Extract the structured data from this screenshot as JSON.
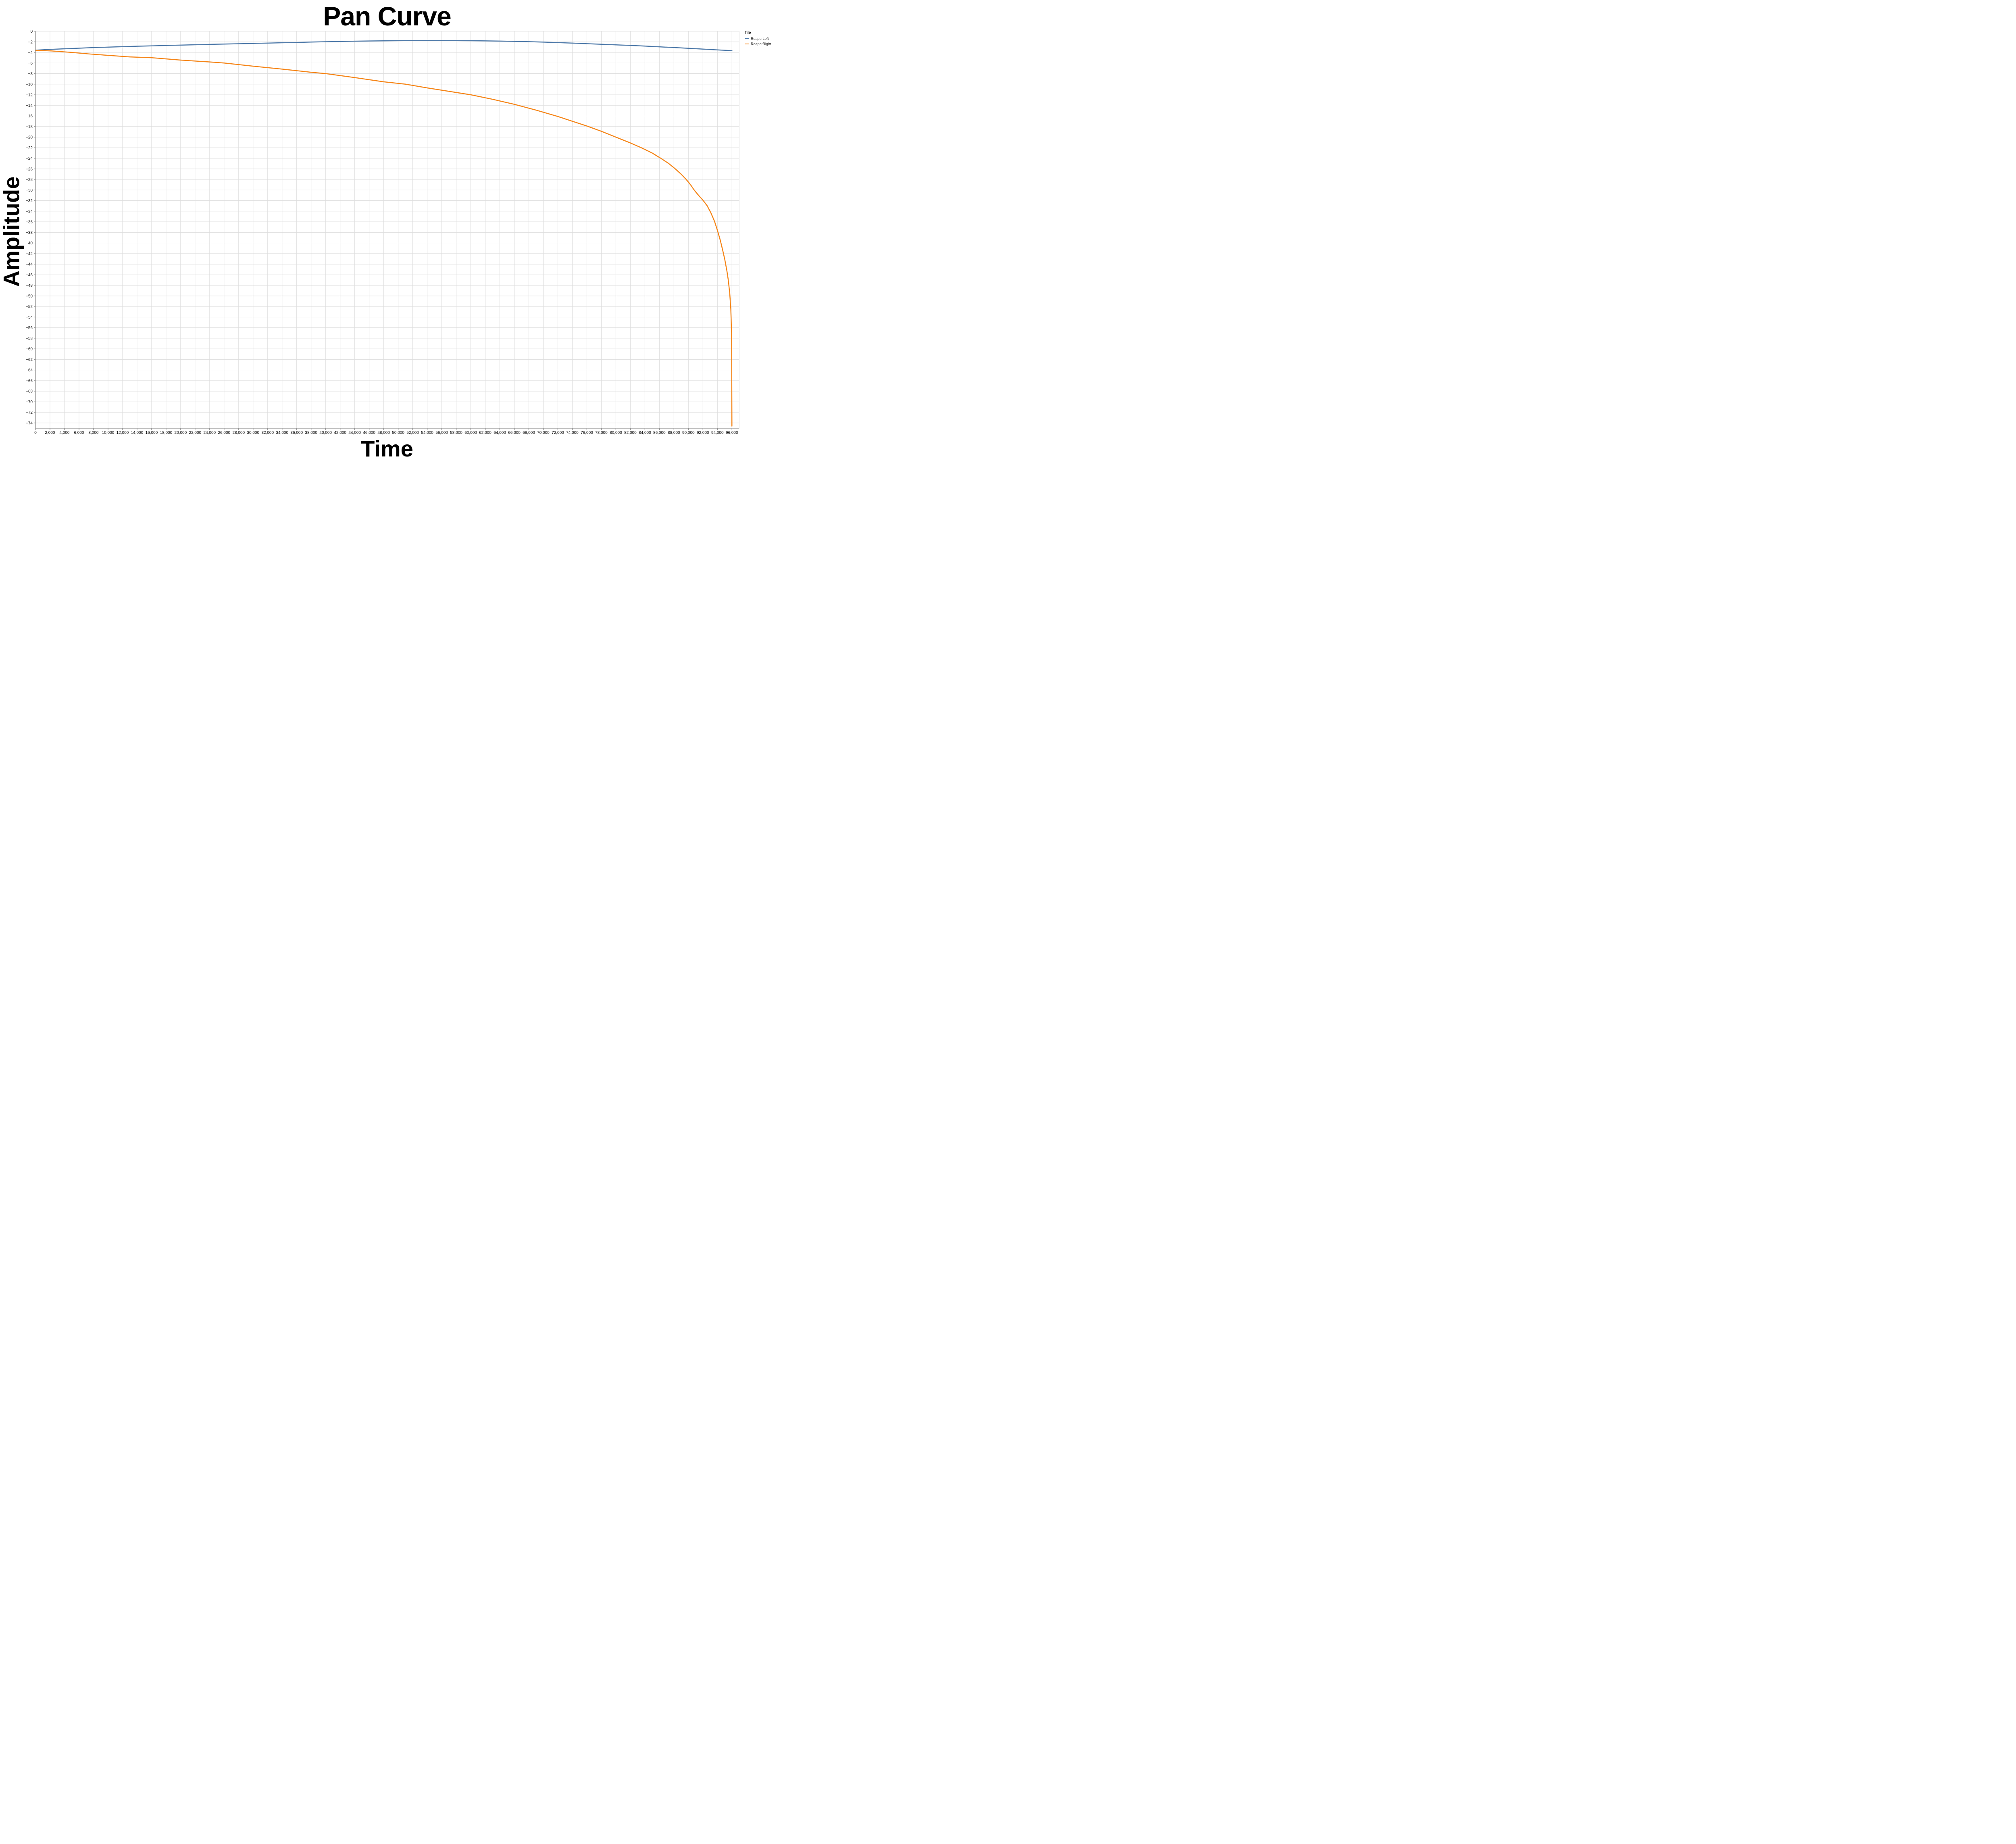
{
  "title": "Pan Curve",
  "legend": {
    "title": "file",
    "items": [
      {
        "label": "ReaperLeft",
        "color": "#4c78a8"
      },
      {
        "label": "ReaperRight",
        "color": "#f58518"
      }
    ]
  },
  "colors": {
    "series_blue": "#4c78a8",
    "series_orange": "#f58518",
    "grid": "#dddddd",
    "axis_domain": "#888888",
    "label": "#000000",
    "background": "#ffffff"
  },
  "chart_data": {
    "type": "line",
    "title": "Pan Curve",
    "xlabel": "Time",
    "ylabel": "Amplitude",
    "xlim": [
      0,
      97000
    ],
    "ylim": [
      -75,
      0
    ],
    "x_tick_step": 2000,
    "x_tick_min": 0,
    "x_tick_max": 96000,
    "y_tick_step": 2,
    "y_tick_min": -74,
    "y_tick_max": 0,
    "grid": true,
    "legend_position": "top-right",
    "legend_title": "file",
    "series": [
      {
        "name": "ReaperLeft",
        "color": "#4c78a8",
        "points": [
          [
            0,
            -3.58
          ],
          [
            1000,
            -3.5
          ],
          [
            2000,
            -3.43
          ],
          [
            4000,
            -3.31
          ],
          [
            6000,
            -3.2
          ],
          [
            8000,
            -3.09
          ],
          [
            10000,
            -3.0
          ],
          [
            12000,
            -2.91
          ],
          [
            14000,
            -2.83
          ],
          [
            16000,
            -2.76
          ],
          [
            18000,
            -2.69
          ],
          [
            20000,
            -2.62
          ],
          [
            22000,
            -2.55
          ],
          [
            24000,
            -2.48
          ],
          [
            26000,
            -2.42
          ],
          [
            28000,
            -2.36
          ],
          [
            30000,
            -2.3
          ],
          [
            32000,
            -2.24
          ],
          [
            34000,
            -2.17
          ],
          [
            36000,
            -2.11
          ],
          [
            38000,
            -2.04
          ],
          [
            40000,
            -1.98
          ],
          [
            42000,
            -1.93
          ],
          [
            44000,
            -1.88
          ],
          [
            46000,
            -1.84
          ],
          [
            48000,
            -1.81
          ],
          [
            50000,
            -1.78
          ],
          [
            52000,
            -1.76
          ],
          [
            54000,
            -1.75
          ],
          [
            56000,
            -1.76
          ],
          [
            58000,
            -1.77
          ],
          [
            60000,
            -1.79
          ],
          [
            62000,
            -1.82
          ],
          [
            64000,
            -1.86
          ],
          [
            66000,
            -1.91
          ],
          [
            68000,
            -1.97
          ],
          [
            70000,
            -2.05
          ],
          [
            72000,
            -2.14
          ],
          [
            74000,
            -2.24
          ],
          [
            76000,
            -2.35
          ],
          [
            78000,
            -2.46
          ],
          [
            80000,
            -2.57
          ],
          [
            82000,
            -2.68
          ],
          [
            84000,
            -2.8
          ],
          [
            86000,
            -2.94
          ],
          [
            88000,
            -3.08
          ],
          [
            90000,
            -3.22
          ],
          [
            92000,
            -3.37
          ],
          [
            94000,
            -3.52
          ],
          [
            96000,
            -3.67
          ]
        ]
      },
      {
        "name": "ReaperRight",
        "color": "#f58518",
        "points": [
          [
            0,
            -3.6
          ],
          [
            1000,
            -3.65
          ],
          [
            2000,
            -3.7
          ],
          [
            3500,
            -3.85
          ],
          [
            5000,
            -4.0
          ],
          [
            7500,
            -4.3
          ],
          [
            10000,
            -4.55
          ],
          [
            13000,
            -4.85
          ],
          [
            16000,
            -5.0
          ],
          [
            20000,
            -5.45
          ],
          [
            24000,
            -5.8
          ],
          [
            26000,
            -6.0
          ],
          [
            30000,
            -6.6
          ],
          [
            34000,
            -7.15
          ],
          [
            38000,
            -7.75
          ],
          [
            40000,
            -8.0
          ],
          [
            44000,
            -8.75
          ],
          [
            48000,
            -9.55
          ],
          [
            51000,
            -10.0
          ],
          [
            54000,
            -10.7
          ],
          [
            57000,
            -11.35
          ],
          [
            60000,
            -12.0
          ],
          [
            63000,
            -12.85
          ],
          [
            66000,
            -13.8
          ],
          [
            69000,
            -14.9
          ],
          [
            72000,
            -16.1
          ],
          [
            74000,
            -17.0
          ],
          [
            76000,
            -17.9
          ],
          [
            78000,
            -18.9
          ],
          [
            80000,
            -20.0
          ],
          [
            82000,
            -21.1
          ],
          [
            83500,
            -22.0
          ],
          [
            85000,
            -23.0
          ],
          [
            86200,
            -24.0
          ],
          [
            87300,
            -25.0
          ],
          [
            88200,
            -26.0
          ],
          [
            89000,
            -27.0
          ],
          [
            89700,
            -28.0
          ],
          [
            90300,
            -29.0
          ],
          [
            90800,
            -30.0
          ],
          [
            91400,
            -31.0
          ],
          [
            92000,
            -31.9
          ],
          [
            92600,
            -33.0
          ],
          [
            93100,
            -34.3
          ],
          [
            93600,
            -35.9
          ],
          [
            94000,
            -37.6
          ],
          [
            94400,
            -39.5
          ],
          [
            94700,
            -41.2
          ],
          [
            95000,
            -43.0
          ],
          [
            95300,
            -45.2
          ],
          [
            95500,
            -47.0
          ],
          [
            95700,
            -49.5
          ],
          [
            95850,
            -52.5
          ],
          [
            95950,
            -57.0
          ],
          [
            96000,
            -74.6
          ]
        ]
      }
    ]
  }
}
